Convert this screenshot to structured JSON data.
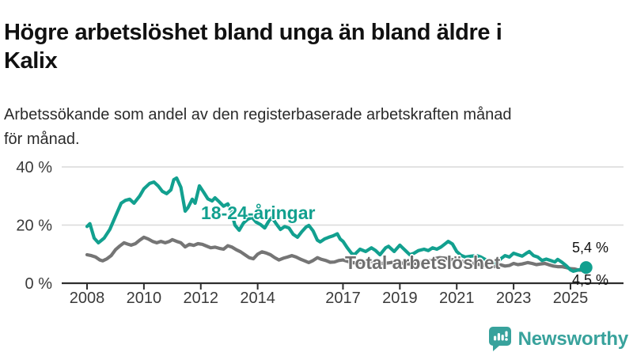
{
  "header": {
    "title_line1": "Högre arbetslöshet bland unga än bland äldre i",
    "title_line2": "Kalix",
    "subtitle_line1": "Arbetssökande som andel av den registerbaserade arbetskraften månad",
    "subtitle_line2": "för månad."
  },
  "annotations": {
    "young_series_label": "18-24-åringar",
    "total_series_label": "Total arbetslöshet",
    "young_end_label": "5,4 %",
    "total_end_label": "4,5 %"
  },
  "footer": {
    "brand": "Newsworthy"
  },
  "chart_data": {
    "type": "line",
    "title": "Högre arbetslöshet bland unga än bland äldre i Kalix",
    "subtitle": "Arbetssökande som andel av den registerbaserade arbetskraften månad för månad.",
    "xlabel": "",
    "ylabel": "",
    "unit": "%",
    "grid": true,
    "legend_position": "inline-labels",
    "xlim": [
      2008,
      2026.9
    ],
    "ylim": [
      0,
      44
    ],
    "y_ticks": [
      {
        "value": 0,
        "label": "0 %"
      },
      {
        "value": 20,
        "label": "20 %"
      },
      {
        "value": 40,
        "label": "40 %"
      }
    ],
    "x_ticks": [
      {
        "year": 2008,
        "label": "2008"
      },
      {
        "year": 2010,
        "label": "2010"
      },
      {
        "year": 2012,
        "label": "2012"
      },
      {
        "year": 2014,
        "label": "2014"
      },
      {
        "year": 2017,
        "label": "2017"
      },
      {
        "year": 2019,
        "label": "2019"
      },
      {
        "year": 2021,
        "label": "2021"
      },
      {
        "year": 2023,
        "label": "2023"
      },
      {
        "year": 2025,
        "label": "2025"
      }
    ],
    "series": [
      {
        "name": "Total arbetslöshet",
        "color": "#757575",
        "end_value": 4.5,
        "end_label": "4,5 %",
        "points": [
          [
            2008.0,
            9.8
          ],
          [
            2008.15,
            9.5
          ],
          [
            2008.3,
            9.0
          ],
          [
            2008.45,
            8.0
          ],
          [
            2008.55,
            7.7
          ],
          [
            2008.7,
            8.4
          ],
          [
            2008.85,
            9.5
          ],
          [
            2009.0,
            11.5
          ],
          [
            2009.15,
            12.8
          ],
          [
            2009.3,
            13.9
          ],
          [
            2009.45,
            13.4
          ],
          [
            2009.55,
            13.1
          ],
          [
            2009.7,
            13.6
          ],
          [
            2009.85,
            14.8
          ],
          [
            2010.0,
            15.8
          ],
          [
            2010.15,
            15.2
          ],
          [
            2010.3,
            14.4
          ],
          [
            2010.45,
            13.9
          ],
          [
            2010.6,
            14.4
          ],
          [
            2010.75,
            13.9
          ],
          [
            2010.9,
            14.4
          ],
          [
            2011.0,
            15.0
          ],
          [
            2011.15,
            14.4
          ],
          [
            2011.3,
            13.9
          ],
          [
            2011.45,
            12.5
          ],
          [
            2011.6,
            13.4
          ],
          [
            2011.75,
            13.0
          ],
          [
            2011.9,
            13.6
          ],
          [
            2012.05,
            13.4
          ],
          [
            2012.2,
            12.8
          ],
          [
            2012.35,
            12.2
          ],
          [
            2012.5,
            12.4
          ],
          [
            2012.65,
            12.0
          ],
          [
            2012.8,
            11.7
          ],
          [
            2012.95,
            12.9
          ],
          [
            2013.1,
            12.4
          ],
          [
            2013.25,
            11.5
          ],
          [
            2013.4,
            10.8
          ],
          [
            2013.55,
            9.8
          ],
          [
            2013.7,
            8.8
          ],
          [
            2013.85,
            8.4
          ],
          [
            2014.0,
            10.0
          ],
          [
            2014.15,
            10.8
          ],
          [
            2014.3,
            10.4
          ],
          [
            2014.45,
            9.8
          ],
          [
            2014.6,
            8.8
          ],
          [
            2014.75,
            8.0
          ],
          [
            2014.9,
            8.6
          ],
          [
            2015.05,
            9.0
          ],
          [
            2015.2,
            9.5
          ],
          [
            2015.35,
            9.0
          ],
          [
            2015.5,
            8.3
          ],
          [
            2015.65,
            7.7
          ],
          [
            2015.8,
            7.1
          ],
          [
            2015.95,
            7.8
          ],
          [
            2016.1,
            8.8
          ],
          [
            2016.25,
            8.2
          ],
          [
            2016.4,
            7.8
          ],
          [
            2016.55,
            7.2
          ],
          [
            2016.7,
            7.3
          ],
          [
            2016.85,
            7.8
          ],
          [
            2017.0,
            8.0
          ],
          [
            2017.2,
            7.4
          ],
          [
            2017.4,
            7.0
          ],
          [
            2017.6,
            7.2
          ],
          [
            2017.8,
            7.5
          ],
          [
            2018.0,
            7.6
          ],
          [
            2018.2,
            7.1
          ],
          [
            2018.4,
            6.8
          ],
          [
            2018.6,
            7.0
          ],
          [
            2018.8,
            7.3
          ],
          [
            2019.0,
            7.1
          ],
          [
            2019.2,
            6.7
          ],
          [
            2019.4,
            6.6
          ],
          [
            2019.6,
            6.9
          ],
          [
            2019.8,
            7.2
          ],
          [
            2020.0,
            7.6
          ],
          [
            2020.2,
            8.4
          ],
          [
            2020.4,
            8.8
          ],
          [
            2020.6,
            8.6
          ],
          [
            2020.8,
            8.2
          ],
          [
            2021.0,
            7.9
          ],
          [
            2021.2,
            7.5
          ],
          [
            2021.4,
            7.1
          ],
          [
            2021.6,
            6.8
          ],
          [
            2021.8,
            6.4
          ],
          [
            2022.0,
            6.1
          ],
          [
            2022.2,
            5.8
          ],
          [
            2022.4,
            5.7
          ],
          [
            2022.55,
            6.3
          ],
          [
            2022.7,
            5.9
          ],
          [
            2022.85,
            6.1
          ],
          [
            2023.0,
            6.8
          ],
          [
            2023.15,
            6.4
          ],
          [
            2023.3,
            6.6
          ],
          [
            2023.5,
            7.1
          ],
          [
            2023.65,
            6.8
          ],
          [
            2023.8,
            6.4
          ],
          [
            2023.95,
            6.6
          ],
          [
            2024.1,
            6.8
          ],
          [
            2024.25,
            6.3
          ],
          [
            2024.4,
            5.9
          ],
          [
            2024.55,
            5.7
          ],
          [
            2024.7,
            5.7
          ],
          [
            2024.85,
            5.4
          ],
          [
            2025.0,
            5.0
          ],
          [
            2025.15,
            4.9
          ],
          [
            2025.3,
            4.5
          ],
          [
            2025.55,
            4.5
          ]
        ]
      },
      {
        "name": "18-24-åringar",
        "color": "#12a08f",
        "end_value": 5.4,
        "end_label": "5,4 %",
        "points": [
          [
            2008.0,
            19.5
          ],
          [
            2008.1,
            20.5
          ],
          [
            2008.25,
            15.5
          ],
          [
            2008.4,
            13.9
          ],
          [
            2008.6,
            15.5
          ],
          [
            2008.8,
            18.5
          ],
          [
            2009.0,
            23.0
          ],
          [
            2009.2,
            27.5
          ],
          [
            2009.35,
            28.5
          ],
          [
            2009.5,
            28.9
          ],
          [
            2009.65,
            27.5
          ],
          [
            2009.85,
            30.0
          ],
          [
            2010.0,
            32.5
          ],
          [
            2010.2,
            34.3
          ],
          [
            2010.35,
            34.8
          ],
          [
            2010.5,
            33.5
          ],
          [
            2010.65,
            31.6
          ],
          [
            2010.8,
            30.8
          ],
          [
            2010.95,
            32.1
          ],
          [
            2011.05,
            35.6
          ],
          [
            2011.15,
            36.2
          ],
          [
            2011.3,
            33.0
          ],
          [
            2011.45,
            24.8
          ],
          [
            2011.55,
            26.0
          ],
          [
            2011.7,
            28.9
          ],
          [
            2011.8,
            27.5
          ],
          [
            2011.95,
            33.5
          ],
          [
            2012.1,
            31.3
          ],
          [
            2012.25,
            29.0
          ],
          [
            2012.4,
            28.3
          ],
          [
            2012.5,
            29.4
          ],
          [
            2012.65,
            28.0
          ],
          [
            2012.8,
            26.5
          ],
          [
            2012.95,
            27.3
          ],
          [
            2013.05,
            25.5
          ],
          [
            2013.2,
            20.0
          ],
          [
            2013.35,
            18.2
          ],
          [
            2013.5,
            20.7
          ],
          [
            2013.65,
            22.0
          ],
          [
            2013.8,
            22.6
          ],
          [
            2013.95,
            21.0
          ],
          [
            2014.1,
            20.2
          ],
          [
            2014.25,
            19.0
          ],
          [
            2014.4,
            21.5
          ],
          [
            2014.5,
            22.6
          ],
          [
            2014.65,
            20.5
          ],
          [
            2014.8,
            18.5
          ],
          [
            2014.95,
            19.5
          ],
          [
            2015.1,
            19.0
          ],
          [
            2015.25,
            16.8
          ],
          [
            2015.4,
            15.8
          ],
          [
            2015.55,
            17.7
          ],
          [
            2015.7,
            19.3
          ],
          [
            2015.8,
            19.9
          ],
          [
            2015.95,
            18.0
          ],
          [
            2016.1,
            14.8
          ],
          [
            2016.2,
            14.2
          ],
          [
            2016.35,
            15.2
          ],
          [
            2016.5,
            15.8
          ],
          [
            2016.65,
            16.3
          ],
          [
            2016.8,
            17.0
          ],
          [
            2016.9,
            15.2
          ],
          [
            2017.0,
            14.4
          ],
          [
            2017.15,
            12.2
          ],
          [
            2017.3,
            10.3
          ],
          [
            2017.4,
            9.8
          ],
          [
            2017.6,
            11.7
          ],
          [
            2017.8,
            10.9
          ],
          [
            2018.0,
            12.2
          ],
          [
            2018.15,
            11.2
          ],
          [
            2018.3,
            9.8
          ],
          [
            2018.5,
            12.2
          ],
          [
            2018.6,
            12.7
          ],
          [
            2018.8,
            10.9
          ],
          [
            2019.0,
            13.1
          ],
          [
            2019.2,
            11.2
          ],
          [
            2019.35,
            9.8
          ],
          [
            2019.5,
            10.3
          ],
          [
            2019.65,
            11.2
          ],
          [
            2019.85,
            11.7
          ],
          [
            2020.0,
            11.2
          ],
          [
            2020.15,
            12.2
          ],
          [
            2020.3,
            11.7
          ],
          [
            2020.45,
            12.5
          ],
          [
            2020.6,
            13.6
          ],
          [
            2020.7,
            14.4
          ],
          [
            2020.85,
            13.5
          ],
          [
            2021.0,
            10.9
          ],
          [
            2021.15,
            9.6
          ],
          [
            2021.3,
            9.0
          ],
          [
            2021.5,
            9.3
          ],
          [
            2021.7,
            9.5
          ],
          [
            2021.85,
            9.0
          ],
          [
            2022.0,
            8.2
          ],
          [
            2022.2,
            7.3
          ],
          [
            2022.4,
            6.8
          ],
          [
            2022.55,
            8.4
          ],
          [
            2022.7,
            9.5
          ],
          [
            2022.85,
            9.0
          ],
          [
            2023.0,
            10.3
          ],
          [
            2023.15,
            9.8
          ],
          [
            2023.3,
            9.3
          ],
          [
            2023.45,
            10.3
          ],
          [
            2023.55,
            10.9
          ],
          [
            2023.7,
            9.5
          ],
          [
            2023.85,
            9.0
          ],
          [
            2024.0,
            7.8
          ],
          [
            2024.15,
            8.3
          ],
          [
            2024.3,
            7.8
          ],
          [
            2024.45,
            7.3
          ],
          [
            2024.55,
            8.2
          ],
          [
            2024.7,
            7.2
          ],
          [
            2024.85,
            6.0
          ],
          [
            2025.0,
            4.6
          ],
          [
            2025.1,
            4.1
          ],
          [
            2025.25,
            4.5
          ],
          [
            2025.4,
            4.9
          ],
          [
            2025.55,
            5.4
          ]
        ]
      }
    ],
    "colors": {
      "accent_teal": "#12a08f",
      "neutral_gray": "#757575",
      "gridline": "#d9d9d9",
      "axis": "#2e2e2e",
      "tick_label": "#3a3a3a",
      "logo_teal": "#38a29c"
    }
  }
}
